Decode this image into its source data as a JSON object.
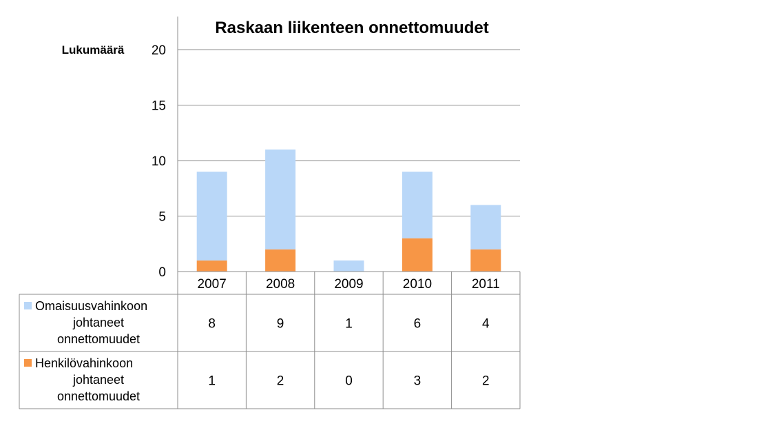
{
  "chart_data": {
    "type": "bar",
    "stacked": true,
    "title": "Raskaan liikenteen onnettomuudet",
    "ylabel": "Lukumäärä",
    "xlabel": "",
    "categories": [
      "2007",
      "2008",
      "2009",
      "2010",
      "2011"
    ],
    "ylim": [
      0,
      20
    ],
    "yticks": [
      0,
      5,
      10,
      15,
      20
    ],
    "grid": true,
    "legend_placement": "data-table",
    "series": [
      {
        "name": "Henkilövahinkoon johtaneet onnettomuudet",
        "legend_lines": [
          "Henkilövahinkoon",
          "johtaneet",
          "onnettomuudet"
        ],
        "values": [
          1,
          2,
          0,
          3,
          2
        ],
        "color": "#f79646"
      },
      {
        "name": "Omaisuusvahinkoon johtaneet onnettomuudet",
        "legend_lines": [
          "Omaisuusvahinkoon",
          "johtaneet",
          "onnettomuudet"
        ],
        "values": [
          8,
          9,
          1,
          6,
          4
        ],
        "color": "#b9d7f8"
      }
    ],
    "table_row_order": [
      1,
      0
    ]
  },
  "colors": {
    "grid": "#8c8c8c",
    "table_border": "#8c8c8c"
  }
}
